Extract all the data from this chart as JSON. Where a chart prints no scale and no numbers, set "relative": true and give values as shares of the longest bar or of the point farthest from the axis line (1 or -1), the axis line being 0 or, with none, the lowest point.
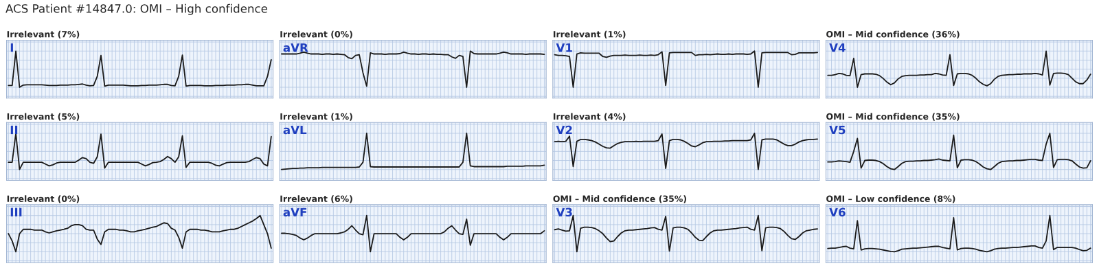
{
  "chart_data": [
    {
      "type": "other",
      "title": "ACS Patient #14847.0: OMI – High confidence"
    },
    {
      "type": "line",
      "relative": true,
      "grid": true,
      "title": "Irrelevant (7%)",
      "annotations": [
        "I"
      ],
      "color": "#1a1a1a",
      "categories": [
        null,
        null,
        null,
        null,
        null,
        null,
        null,
        null,
        null,
        null,
        null,
        null,
        null,
        null,
        null,
        null,
        null,
        null,
        null,
        null,
        null,
        null,
        null,
        null,
        null,
        null,
        null,
        null,
        null,
        null,
        null,
        null,
        null,
        null,
        null,
        null,
        null,
        null,
        null,
        null,
        null,
        null,
        null,
        null,
        null,
        null,
        null,
        null,
        null,
        null,
        null,
        null,
        null,
        null,
        null,
        null,
        null,
        null,
        null,
        null,
        null,
        null,
        null,
        null,
        null,
        null,
        null,
        null,
        null,
        null,
        null,
        null
      ],
      "values": [
        0.05,
        0.05,
        1.0,
        0.0,
        0.06,
        0.07,
        0.07,
        0.07,
        0.07,
        0.07,
        0.06,
        0.05,
        0.05,
        0.05,
        0.06,
        0.06,
        0.06,
        0.07,
        0.07,
        0.08,
        0.09,
        0.06,
        0.04,
        0.05,
        0.3,
        0.88,
        0.03,
        0.06,
        0.06,
        0.06,
        0.06,
        0.06,
        0.05,
        0.04,
        0.04,
        0.04,
        0.05,
        0.05,
        0.06,
        0.06,
        0.06,
        0.07,
        0.08,
        0.08,
        0.05,
        0.04,
        0.3,
        0.89,
        0.03,
        0.05,
        0.05,
        0.05,
        0.05,
        0.04,
        0.04,
        0.04,
        0.05,
        0.05,
        0.05,
        0.06,
        0.06,
        0.06,
        0.07,
        0.07,
        0.08,
        0.08,
        0.06,
        0.04,
        0.04,
        0.04,
        0.3,
        0.76
      ]
    },
    {
      "type": "line",
      "relative": true,
      "grid": true,
      "title": "Irrelevant (0%)",
      "annotations": [
        "aVR"
      ],
      "color": "#1a1a1a",
      "categories": [
        null,
        null,
        null,
        null,
        null,
        null,
        null,
        null,
        null,
        null,
        null,
        null,
        null,
        null,
        null,
        null,
        null,
        null,
        null,
        null,
        null,
        null,
        null,
        null,
        null,
        null,
        null,
        null,
        null,
        null,
        null,
        null,
        null,
        null,
        null,
        null,
        null,
        null,
        null,
        null,
        null,
        null,
        null,
        null,
        null,
        null,
        null,
        null,
        null,
        null,
        null,
        null,
        null,
        null,
        null,
        null,
        null,
        null,
        null,
        null,
        null,
        null,
        null,
        null,
        null,
        null,
        null,
        null,
        null,
        null,
        null,
        null
      ],
      "values": [
        0.92,
        0.92,
        0.92,
        0.92,
        0.92,
        0.94,
        0.97,
        0.94,
        0.92,
        0.92,
        0.92,
        0.91,
        0.92,
        0.92,
        0.91,
        0.92,
        0.91,
        0.9,
        0.82,
        0.79,
        0.88,
        0.9,
        0.4,
        0.03,
        0.95,
        0.92,
        0.92,
        0.92,
        0.91,
        0.92,
        0.92,
        0.92,
        0.93,
        0.97,
        0.94,
        0.92,
        0.92,
        0.91,
        0.92,
        0.92,
        0.91,
        0.92,
        0.91,
        0.91,
        0.9,
        0.9,
        0.84,
        0.8,
        0.88,
        0.85,
        0.0,
        1.0,
        0.93,
        0.92,
        0.92,
        0.92,
        0.92,
        0.92,
        0.92,
        0.94,
        0.97,
        0.95,
        0.92,
        0.92,
        0.92,
        0.92,
        0.91,
        0.92,
        0.92,
        0.92,
        0.92,
        0.91
      ]
    },
    {
      "type": "line",
      "relative": true,
      "grid": true,
      "title": "Irrelevant (1%)",
      "annotations": [
        "V1"
      ],
      "color": "#1a1a1a",
      "categories": [
        null,
        null,
        null,
        null,
        null,
        null,
        null,
        null,
        null,
        null,
        null,
        null,
        null,
        null,
        null,
        null,
        null,
        null,
        null,
        null,
        null,
        null,
        null,
        null,
        null,
        null,
        null,
        null,
        null,
        null,
        null,
        null,
        null,
        null,
        null,
        null,
        null,
        null,
        null,
        null,
        null,
        null,
        null,
        null,
        null,
        null,
        null,
        null,
        null,
        null,
        null,
        null,
        null,
        null,
        null,
        null,
        null,
        null,
        null,
        null,
        null,
        null,
        null,
        null,
        null,
        null,
        null,
        null,
        null,
        null,
        null,
        null
      ],
      "values": [
        0.9,
        0.88,
        0.88,
        0.87,
        0.85,
        0.0,
        0.92,
        0.95,
        0.94,
        0.94,
        0.94,
        0.94,
        0.94,
        0.85,
        0.83,
        0.86,
        0.88,
        0.88,
        0.88,
        0.89,
        0.88,
        0.88,
        0.88,
        0.89,
        0.88,
        0.88,
        0.89,
        0.88,
        0.9,
        0.98,
        0.05,
        0.95,
        0.96,
        0.96,
        0.96,
        0.96,
        0.96,
        0.96,
        0.88,
        0.9,
        0.9,
        0.91,
        0.9,
        0.91,
        0.92,
        0.91,
        0.91,
        0.92,
        0.91,
        0.92,
        0.92,
        0.92,
        0.91,
        0.92,
        1.0,
        0.0,
        0.95,
        0.96,
        0.96,
        0.96,
        0.96,
        0.96,
        0.96,
        0.96,
        0.9,
        0.91,
        0.95,
        0.95,
        0.95,
        0.95,
        0.95,
        0.96
      ]
    },
    {
      "type": "line",
      "relative": true,
      "grid": true,
      "title": "OMI – Mid confidence (36%)",
      "annotations": [
        "V4"
      ],
      "color": "#1a1a1a",
      "categories": [
        null,
        null,
        null,
        null,
        null,
        null,
        null,
        null,
        null,
        null,
        null,
        null,
        null,
        null,
        null,
        null,
        null,
        null,
        null,
        null,
        null,
        null,
        null,
        null,
        null,
        null,
        null,
        null,
        null,
        null,
        null,
        null,
        null,
        null,
        null,
        null,
        null,
        null,
        null,
        null,
        null,
        null,
        null,
        null,
        null,
        null,
        null,
        null,
        null,
        null,
        null,
        null,
        null,
        null,
        null,
        null,
        null,
        null,
        null,
        null,
        null,
        null,
        null,
        null,
        null,
        null,
        null,
        null,
        null,
        null,
        null,
        null
      ],
      "values": [
        0.33,
        0.33,
        0.35,
        0.38,
        0.37,
        0.33,
        0.32,
        0.8,
        0.0,
        0.35,
        0.37,
        0.37,
        0.37,
        0.36,
        0.32,
        0.24,
        0.14,
        0.07,
        0.12,
        0.23,
        0.3,
        0.32,
        0.33,
        0.33,
        0.33,
        0.34,
        0.34,
        0.35,
        0.35,
        0.38,
        0.37,
        0.34,
        0.33,
        0.9,
        0.05,
        0.37,
        0.38,
        0.38,
        0.37,
        0.33,
        0.25,
        0.15,
        0.08,
        0.04,
        0.1,
        0.22,
        0.3,
        0.33,
        0.34,
        0.35,
        0.35,
        0.36,
        0.36,
        0.37,
        0.37,
        0.37,
        0.38,
        0.37,
        0.34,
        1.0,
        0.06,
        0.38,
        0.39,
        0.39,
        0.38,
        0.35,
        0.25,
        0.15,
        0.1,
        0.1,
        0.2,
        0.36
      ]
    },
    {
      "type": "line",
      "relative": true,
      "grid": true,
      "title": "Irrelevant (5%)",
      "annotations": [
        "II"
      ],
      "color": "#1a1a1a",
      "categories": [
        null,
        null,
        null,
        null,
        null,
        null,
        null,
        null,
        null,
        null,
        null,
        null,
        null,
        null,
        null,
        null,
        null,
        null,
        null,
        null,
        null,
        null,
        null,
        null,
        null,
        null,
        null,
        null,
        null,
        null,
        null,
        null,
        null,
        null,
        null,
        null,
        null,
        null,
        null,
        null,
        null,
        null,
        null,
        null,
        null,
        null,
        null,
        null,
        null,
        null,
        null,
        null,
        null,
        null,
        null,
        null,
        null,
        null,
        null,
        null,
        null,
        null,
        null,
        null,
        null,
        null,
        null,
        null,
        null,
        null,
        null,
        null
      ],
      "values": [
        0.2,
        0.2,
        1.0,
        0.0,
        0.2,
        0.2,
        0.2,
        0.2,
        0.2,
        0.2,
        0.15,
        0.1,
        0.13,
        0.18,
        0.2,
        0.2,
        0.2,
        0.2,
        0.2,
        0.26,
        0.33,
        0.3,
        0.2,
        0.17,
        0.35,
        0.98,
        0.04,
        0.2,
        0.2,
        0.2,
        0.2,
        0.2,
        0.2,
        0.2,
        0.2,
        0.2,
        0.15,
        0.1,
        0.14,
        0.19,
        0.2,
        0.22,
        0.28,
        0.36,
        0.3,
        0.2,
        0.35,
        0.93,
        0.06,
        0.2,
        0.2,
        0.2,
        0.2,
        0.2,
        0.2,
        0.17,
        0.12,
        0.1,
        0.15,
        0.19,
        0.2,
        0.2,
        0.2,
        0.2,
        0.2,
        0.22,
        0.28,
        0.33,
        0.3,
        0.15,
        0.1,
        0.91
      ]
    },
    {
      "type": "line",
      "relative": true,
      "grid": true,
      "title": "Irrelevant (1%)",
      "annotations": [
        "aVL"
      ],
      "color": "#1a1a1a",
      "categories": [
        null,
        null,
        null,
        null,
        null,
        null,
        null,
        null,
        null,
        null,
        null,
        null,
        null,
        null,
        null,
        null,
        null,
        null,
        null,
        null,
        null,
        null,
        null,
        null,
        null,
        null,
        null,
        null,
        null,
        null,
        null,
        null,
        null,
        null,
        null,
        null,
        null,
        null,
        null,
        null,
        null,
        null,
        null,
        null,
        null,
        null,
        null,
        null,
        null,
        null,
        null,
        null,
        null,
        null,
        null,
        null,
        null,
        null,
        null,
        null,
        null,
        null,
        null,
        null,
        null,
        null,
        null,
        null,
        null,
        null,
        null,
        null
      ],
      "values": [
        0.0,
        0.01,
        0.02,
        0.03,
        0.03,
        0.04,
        0.04,
        0.05,
        0.05,
        0.05,
        0.05,
        0.06,
        0.06,
        0.06,
        0.06,
        0.06,
        0.06,
        0.06,
        0.06,
        0.06,
        0.06,
        0.07,
        0.2,
        1.0,
        0.08,
        0.07,
        0.07,
        0.07,
        0.07,
        0.07,
        0.07,
        0.07,
        0.07,
        0.07,
        0.07,
        0.07,
        0.07,
        0.07,
        0.07,
        0.07,
        0.07,
        0.07,
        0.07,
        0.07,
        0.07,
        0.07,
        0.07,
        0.07,
        0.07,
        0.2,
        1.0,
        0.1,
        0.08,
        0.08,
        0.08,
        0.08,
        0.08,
        0.08,
        0.08,
        0.08,
        0.08,
        0.09,
        0.09,
        0.09,
        0.09,
        0.09,
        0.1,
        0.1,
        0.1,
        0.1,
        0.1,
        0.12
      ]
    },
    {
      "type": "line",
      "relative": true,
      "grid": true,
      "title": "Irrelevant (4%)",
      "annotations": [
        "V2"
      ],
      "color": "#1a1a1a",
      "categories": [
        null,
        null,
        null,
        null,
        null,
        null,
        null,
        null,
        null,
        null,
        null,
        null,
        null,
        null,
        null,
        null,
        null,
        null,
        null,
        null,
        null,
        null,
        null,
        null,
        null,
        null,
        null,
        null,
        null,
        null,
        null,
        null,
        null,
        null,
        null,
        null,
        null,
        null,
        null,
        null,
        null,
        null,
        null,
        null,
        null,
        null,
        null,
        null,
        null,
        null,
        null,
        null,
        null,
        null,
        null,
        null,
        null,
        null,
        null,
        null,
        null,
        null,
        null,
        null,
        null,
        null,
        null,
        null,
        null,
        null,
        null,
        null
      ],
      "values": [
        0.77,
        0.78,
        0.77,
        0.78,
        0.92,
        0.08,
        0.78,
        0.83,
        0.83,
        0.82,
        0.8,
        0.76,
        0.7,
        0.64,
        0.6,
        0.59,
        0.66,
        0.72,
        0.75,
        0.77,
        0.77,
        0.77,
        0.78,
        0.77,
        0.78,
        0.78,
        0.78,
        0.78,
        0.8,
        0.98,
        0.03,
        0.8,
        0.83,
        0.83,
        0.82,
        0.78,
        0.72,
        0.65,
        0.63,
        0.68,
        0.74,
        0.77,
        0.77,
        0.78,
        0.78,
        0.78,
        0.79,
        0.79,
        0.8,
        0.8,
        0.8,
        0.8,
        0.8,
        0.82,
        1.0,
        0.0,
        0.82,
        0.84,
        0.84,
        0.84,
        0.82,
        0.76,
        0.7,
        0.66,
        0.66,
        0.7,
        0.76,
        0.8,
        0.82,
        0.83,
        0.83,
        0.84
      ]
    },
    {
      "type": "line",
      "relative": true,
      "grid": true,
      "title": "OMI – Mid confidence (35%)",
      "annotations": [
        "V5"
      ],
      "color": "#1a1a1a",
      "categories": [
        null,
        null,
        null,
        null,
        null,
        null,
        null,
        null,
        null,
        null,
        null,
        null,
        null,
        null,
        null,
        null,
        null,
        null,
        null,
        null,
        null,
        null,
        null,
        null,
        null,
        null,
        null,
        null,
        null,
        null,
        null,
        null,
        null,
        null,
        null,
        null,
        null,
        null,
        null,
        null,
        null,
        null,
        null,
        null,
        null,
        null,
        null,
        null,
        null,
        null,
        null,
        null,
        null,
        null,
        null,
        null,
        null,
        null,
        null,
        null,
        null,
        null,
        null,
        null,
        null,
        null,
        null,
        null,
        null,
        null,
        null,
        null
      ],
      "values": [
        0.21,
        0.21,
        0.22,
        0.24,
        0.23,
        0.22,
        0.2,
        0.5,
        0.86,
        0.04,
        0.25,
        0.26,
        0.26,
        0.25,
        0.22,
        0.16,
        0.08,
        0.02,
        0.0,
        0.08,
        0.17,
        0.22,
        0.23,
        0.23,
        0.24,
        0.24,
        0.25,
        0.25,
        0.26,
        0.27,
        0.29,
        0.26,
        0.25,
        0.24,
        0.95,
        0.05,
        0.26,
        0.27,
        0.27,
        0.26,
        0.22,
        0.15,
        0.07,
        0.02,
        0.0,
        0.08,
        0.17,
        0.22,
        0.23,
        0.24,
        0.24,
        0.25,
        0.25,
        0.26,
        0.27,
        0.28,
        0.28,
        0.26,
        0.25,
        0.7,
        1.0,
        0.06,
        0.27,
        0.28,
        0.28,
        0.27,
        0.24,
        0.15,
        0.07,
        0.04,
        0.05,
        0.24
      ]
    },
    {
      "type": "line",
      "relative": true,
      "grid": true,
      "title": "Irrelevant (0%)",
      "annotations": [
        "III"
      ],
      "color": "#1a1a1a",
      "categories": [
        null,
        null,
        null,
        null,
        null,
        null,
        null,
        null,
        null,
        null,
        null,
        null,
        null,
        null,
        null,
        null,
        null,
        null,
        null,
        null,
        null,
        null,
        null,
        null,
        null,
        null,
        null,
        null,
        null,
        null,
        null,
        null,
        null,
        null,
        null,
        null,
        null,
        null,
        null,
        null,
        null,
        null,
        null,
        null,
        null,
        null,
        null,
        null,
        null,
        null,
        null,
        null,
        null,
        null,
        null,
        null,
        null,
        null,
        null,
        null,
        null,
        null,
        null,
        null,
        null,
        null,
        null,
        null,
        null,
        null,
        null,
        null
      ],
      "values": [
        0.5,
        0.3,
        0.0,
        0.5,
        0.62,
        0.62,
        0.62,
        0.6,
        0.6,
        0.6,
        0.55,
        0.52,
        0.55,
        0.58,
        0.6,
        0.62,
        0.65,
        0.72,
        0.75,
        0.75,
        0.72,
        0.62,
        0.6,
        0.6,
        0.35,
        0.2,
        0.55,
        0.62,
        0.62,
        0.62,
        0.6,
        0.6,
        0.58,
        0.55,
        0.55,
        0.58,
        0.6,
        0.62,
        0.65,
        0.68,
        0.7,
        0.75,
        0.8,
        0.78,
        0.65,
        0.6,
        0.4,
        0.1,
        0.55,
        0.62,
        0.62,
        0.62,
        0.6,
        0.6,
        0.58,
        0.55,
        0.55,
        0.55,
        0.58,
        0.6,
        0.62,
        0.62,
        0.65,
        0.7,
        0.75,
        0.8,
        0.85,
        0.92,
        1.0,
        0.75,
        0.5,
        0.1
      ]
    },
    {
      "type": "line",
      "relative": true,
      "grid": true,
      "title": "Irrelevant (6%)",
      "annotations": [
        "aVF"
      ],
      "color": "#1a1a1a",
      "categories": [
        null,
        null,
        null,
        null,
        null,
        null,
        null,
        null,
        null,
        null,
        null,
        null,
        null,
        null,
        null,
        null,
        null,
        null,
        null,
        null,
        null,
        null,
        null,
        null,
        null,
        null,
        null,
        null,
        null,
        null,
        null,
        null,
        null,
        null,
        null,
        null,
        null,
        null,
        null,
        null,
        null,
        null,
        null,
        null,
        null,
        null,
        null,
        null,
        null,
        null,
        null,
        null,
        null,
        null,
        null,
        null,
        null,
        null,
        null,
        null,
        null,
        null,
        null,
        null,
        null,
        null,
        null,
        null,
        null,
        null,
        null,
        null
      ],
      "values": [
        0.51,
        0.51,
        0.5,
        0.48,
        0.45,
        0.38,
        0.33,
        0.38,
        0.45,
        0.5,
        0.5,
        0.5,
        0.5,
        0.5,
        0.5,
        0.5,
        0.52,
        0.55,
        0.62,
        0.72,
        0.6,
        0.5,
        0.47,
        1.0,
        0.0,
        0.5,
        0.5,
        0.5,
        0.5,
        0.5,
        0.5,
        0.5,
        0.4,
        0.33,
        0.4,
        0.5,
        0.5,
        0.5,
        0.5,
        0.5,
        0.5,
        0.5,
        0.5,
        0.5,
        0.55,
        0.65,
        0.72,
        0.6,
        0.5,
        0.48,
        0.9,
        0.18,
        0.5,
        0.5,
        0.5,
        0.5,
        0.5,
        0.5,
        0.5,
        0.4,
        0.33,
        0.4,
        0.5,
        0.5,
        0.5,
        0.5,
        0.5,
        0.5,
        0.5,
        0.5,
        0.5,
        0.58
      ]
    },
    {
      "type": "line",
      "relative": true,
      "grid": true,
      "title": "OMI – Mid confidence (35%)",
      "annotations": [
        "V3"
      ],
      "color": "#1a1a1a",
      "categories": [
        null,
        null,
        null,
        null,
        null,
        null,
        null,
        null,
        null,
        null,
        null,
        null,
        null,
        null,
        null,
        null,
        null,
        null,
        null,
        null,
        null,
        null,
        null,
        null,
        null,
        null,
        null,
        null,
        null,
        null,
        null,
        null,
        null,
        null,
        null,
        null,
        null,
        null,
        null,
        null,
        null,
        null,
        null,
        null,
        null,
        null,
        null,
        null,
        null,
        null,
        null,
        null,
        null,
        null,
        null,
        null,
        null,
        null,
        null,
        null,
        null,
        null,
        null,
        null,
        null,
        null,
        null,
        null,
        null,
        null,
        null,
        null
      ],
      "values": [
        0.61,
        0.63,
        0.6,
        0.57,
        0.58,
        1.0,
        0.0,
        0.65,
        0.68,
        0.68,
        0.67,
        0.64,
        0.58,
        0.5,
        0.38,
        0.28,
        0.3,
        0.42,
        0.52,
        0.58,
        0.6,
        0.6,
        0.61,
        0.62,
        0.63,
        0.64,
        0.66,
        0.67,
        0.62,
        0.6,
        0.98,
        0.02,
        0.66,
        0.68,
        0.68,
        0.66,
        0.62,
        0.52,
        0.4,
        0.32,
        0.31,
        0.42,
        0.52,
        0.58,
        0.6,
        0.6,
        0.61,
        0.62,
        0.63,
        0.64,
        0.66,
        0.67,
        0.68,
        0.62,
        0.6,
        1.0,
        0.03,
        0.66,
        0.68,
        0.68,
        0.67,
        0.64,
        0.56,
        0.45,
        0.36,
        0.34,
        0.42,
        0.52,
        0.58,
        0.6,
        0.62,
        0.63
      ]
    },
    {
      "type": "line",
      "relative": true,
      "grid": true,
      "title": "OMI – Low confidence (8%)",
      "annotations": [
        "V6"
      ],
      "color": "#1a1a1a",
      "categories": [
        null,
        null,
        null,
        null,
        null,
        null,
        null,
        null,
        null,
        null,
        null,
        null,
        null,
        null,
        null,
        null,
        null,
        null,
        null,
        null,
        null,
        null,
        null,
        null,
        null,
        null,
        null,
        null,
        null,
        null,
        null,
        null,
        null,
        null,
        null,
        null,
        null,
        null,
        null,
        null,
        null,
        null,
        null,
        null,
        null,
        null,
        null,
        null,
        null,
        null,
        null,
        null,
        null,
        null,
        null,
        null,
        null,
        null,
        null,
        null,
        null,
        null,
        null,
        null,
        null,
        null,
        null,
        null,
        null,
        null,
        null,
        null
      ],
      "values": [
        0.09,
        0.1,
        0.1,
        0.12,
        0.14,
        0.15,
        0.1,
        0.08,
        0.86,
        0.05,
        0.08,
        0.09,
        0.09,
        0.08,
        0.07,
        0.05,
        0.03,
        0.01,
        0.0,
        0.03,
        0.07,
        0.08,
        0.09,
        0.1,
        0.1,
        0.11,
        0.12,
        0.13,
        0.14,
        0.15,
        0.15,
        0.12,
        0.1,
        0.08,
        0.94,
        0.05,
        0.09,
        0.1,
        0.1,
        0.09,
        0.07,
        0.04,
        0.02,
        0.0,
        0.03,
        0.07,
        0.09,
        0.1,
        0.1,
        0.11,
        0.12,
        0.12,
        0.13,
        0.14,
        0.15,
        0.16,
        0.16,
        0.12,
        0.1,
        0.3,
        1.0,
        0.06,
        0.12,
        0.12,
        0.12,
        0.12,
        0.12,
        0.1,
        0.06,
        0.03,
        0.04,
        0.1
      ]
    }
  ]
}
